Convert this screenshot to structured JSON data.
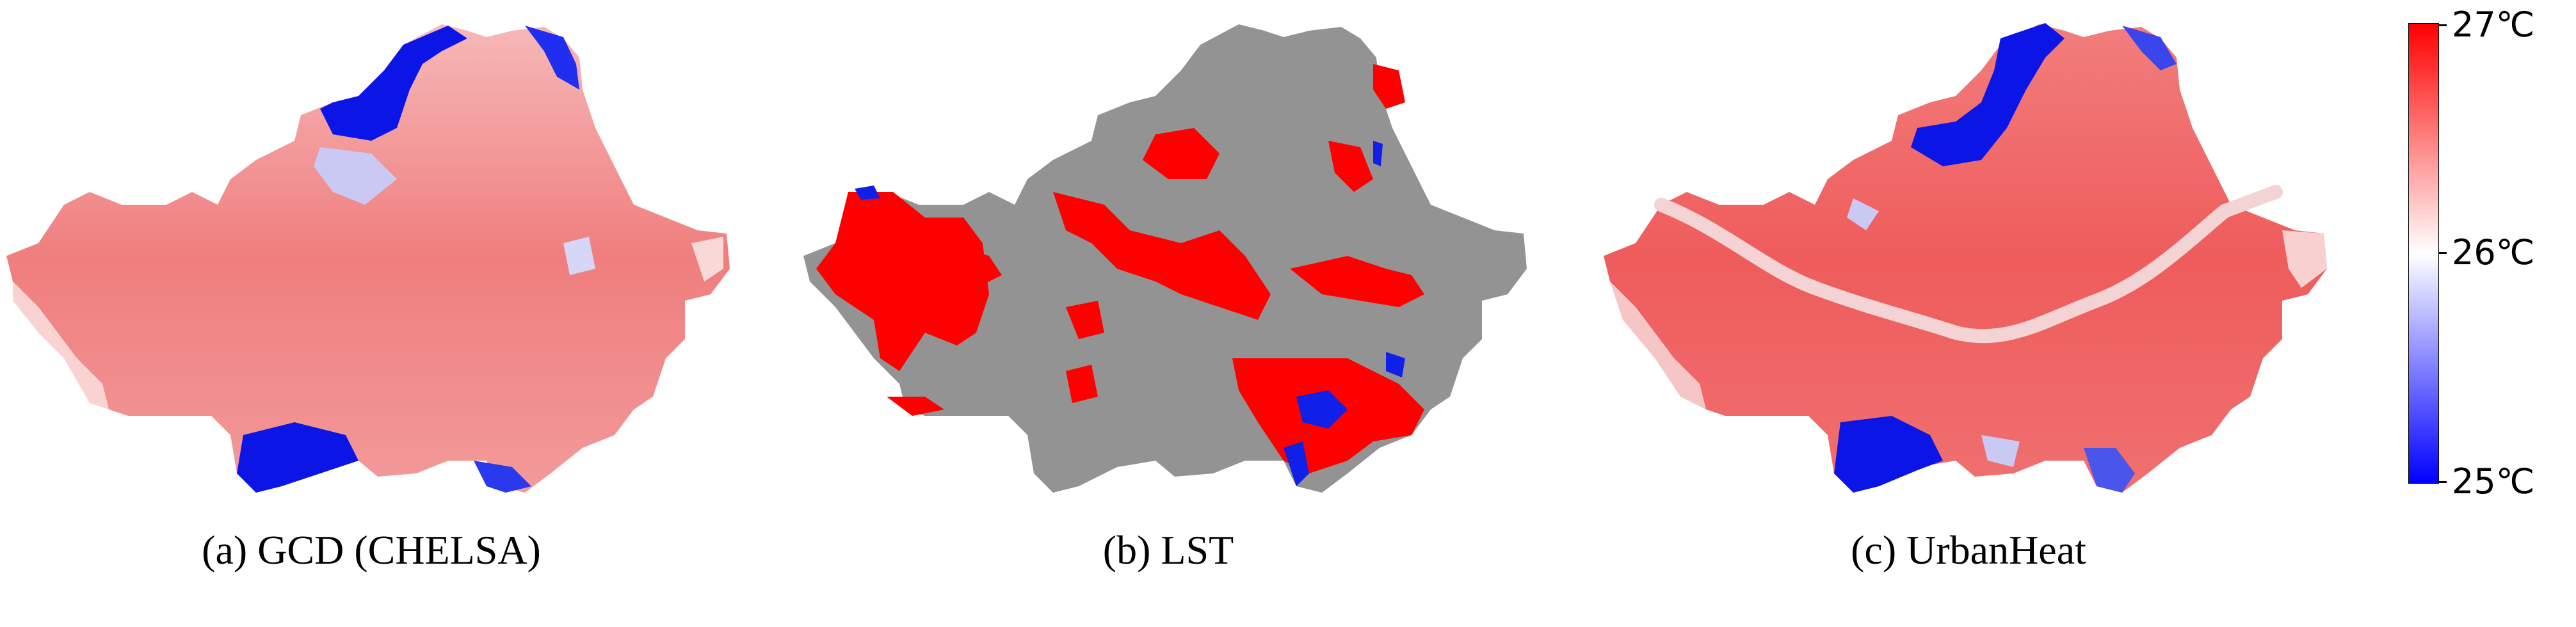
{
  "panels": [
    {
      "id": "a",
      "caption": "(a) GCD (CHELSA)"
    },
    {
      "id": "b",
      "caption": "(b) LST"
    },
    {
      "id": "c",
      "caption": "(c) UrbanHeat"
    }
  ],
  "legend": {
    "ticks": [
      "27℃",
      "26℃",
      "25℃"
    ],
    "colors": {
      "high": "#ff0000",
      "mid": "#ffffff",
      "low": "#0000ff"
    }
  },
  "colors": {
    "warm": "#f07c7c",
    "warm_light": "#f6b2b2",
    "cool": "#0b16e6",
    "cool_light": "#c8c8f2",
    "hot": "#ff0000",
    "no_data": "#939393",
    "river": "#f3d3d3"
  }
}
